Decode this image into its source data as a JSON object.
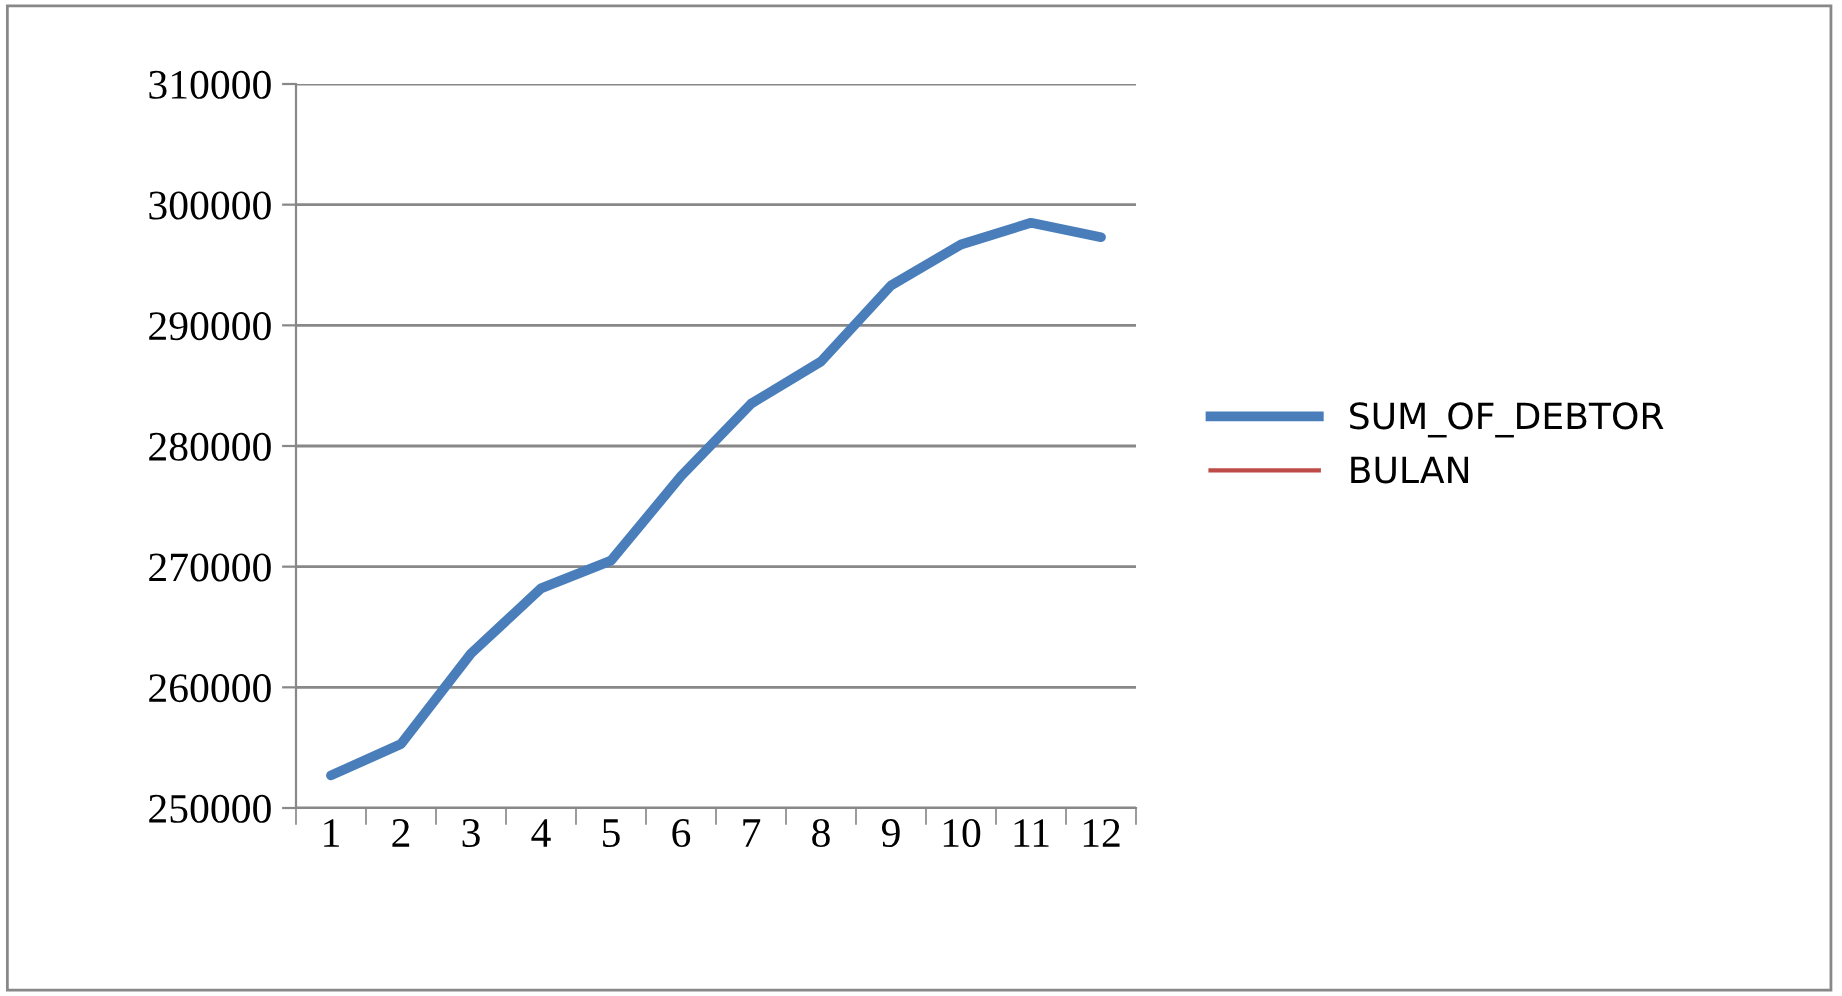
{
  "chart_data": {
    "type": "line",
    "categories": [
      "1",
      "2",
      "3",
      "4",
      "5",
      "6",
      "7",
      "8",
      "9",
      "10",
      "11",
      "12"
    ],
    "series": [
      {
        "name": "SUM_OF_DEBTOR",
        "color": "#4a7ebb",
        "values": [
          252700,
          255300,
          262800,
          268200,
          270500,
          277500,
          283500,
          287000,
          293300,
          296700,
          298500,
          297300
        ]
      },
      {
        "name": "BULAN",
        "color": "#be4b48",
        "values": [
          null,
          null,
          null,
          null,
          null,
          null,
          null,
          null,
          null,
          null,
          null,
          null
        ]
      }
    ],
    "ylim": [
      250000,
      310000
    ],
    "yticks": [
      250000,
      260000,
      270000,
      280000,
      290000,
      300000,
      310000
    ],
    "grid": "y",
    "legend": "right",
    "marker": "none",
    "line_style": "solid"
  }
}
